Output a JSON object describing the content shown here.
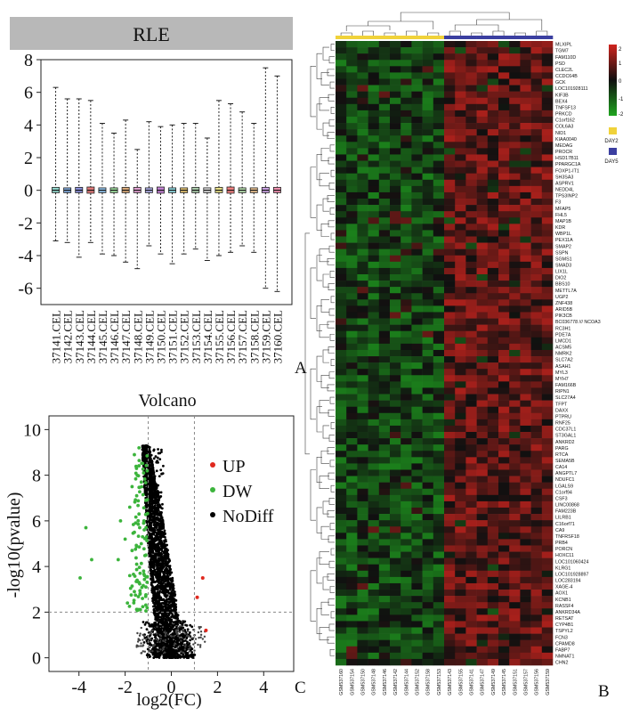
{
  "panel_labels": {
    "a": "A",
    "b": "B",
    "c": "C"
  },
  "colors": {
    "rle_header": "#b8b8b8",
    "heat_low": "#1fa51f",
    "heat_mid": "#101010",
    "heat_high": "#d0241e",
    "group_day2": "#f0d23a",
    "group_day5": "#3b3fa0",
    "up": "#e0281e",
    "dw": "#3cb43c",
    "nodiff": "#000000"
  },
  "chart_data": [
    {
      "type": "box",
      "title": "RLE",
      "ylim": [
        -7,
        8
      ],
      "yticks": [
        8,
        6,
        4,
        2,
        0,
        -2,
        -4,
        -6
      ],
      "categories": [
        "37141.CEL",
        "37142.CEL",
        "37143.CEL",
        "37144.CEL",
        "37145.CEL",
        "37146.CEL",
        "37147.CEL",
        "37148.CEL",
        "37149.CEL",
        "37150.CEL",
        "37151.CEL",
        "37152.CEL",
        "37153.CEL",
        "37154.CEL",
        "37155.CEL",
        "37156.CEL",
        "37157.CEL",
        "37158.CEL",
        "37159.CEL",
        "37160.CEL"
      ],
      "box_colors": [
        "#8fd3c8",
        "#7fa7d8",
        "#8a8fd8",
        "#e07a7a",
        "#8fc0e8",
        "#a0e0a0",
        "#d8a878",
        "#e0a0d0",
        "#b0b0e8",
        "#c080d0",
        "#90d8e0",
        "#e0c070",
        "#a8c8a8",
        "#d8d8d8",
        "#e8e088",
        "#f08080",
        "#b8e0b0",
        "#e8c090",
        "#c8a0e0",
        "#f090b0"
      ],
      "whisker_max": [
        6.3,
        5.6,
        5.6,
        5.5,
        4.1,
        3.5,
        4.3,
        2.5,
        4.2,
        3.9,
        4.0,
        4.1,
        4.1,
        3.2,
        5.5,
        5.3,
        4.8,
        4.1,
        7.5,
        7.0
      ],
      "whisker_min": [
        -3.1,
        -3.2,
        -4.1,
        -3.2,
        -3.9,
        -4.0,
        -4.4,
        -4.8,
        -3.4,
        -3.9,
        -4.5,
        -3.9,
        -3.6,
        -4.3,
        -4.0,
        -3.8,
        -3.4,
        -3.8,
        -6.0,
        -6.2
      ],
      "q1": [
        -0.15,
        -0.15,
        -0.15,
        -0.18,
        -0.15,
        -0.15,
        -0.15,
        -0.15,
        -0.15,
        -0.18,
        -0.15,
        -0.15,
        -0.15,
        -0.15,
        -0.15,
        -0.18,
        -0.15,
        -0.15,
        -0.15,
        -0.15
      ],
      "q3": [
        0.18,
        0.15,
        0.18,
        0.2,
        0.15,
        0.15,
        0.18,
        0.18,
        0.15,
        0.2,
        0.15,
        0.15,
        0.18,
        0.15,
        0.18,
        0.2,
        0.15,
        0.15,
        0.18,
        0.18
      ],
      "median": [
        0,
        0,
        0,
        0,
        0,
        0,
        0,
        0,
        0,
        0,
        0,
        0,
        0,
        0,
        0,
        0,
        0,
        0,
        0,
        0
      ]
    },
    {
      "type": "scatter",
      "title": "Volcano",
      "xlabel": "log2(FC)",
      "ylabel": "-log10(pvalue)",
      "xlim": [
        -5.3,
        5.3
      ],
      "ylim": [
        -0.6,
        10.6
      ],
      "xticks": [
        -4,
        -2,
        0,
        2,
        4
      ],
      "yticks": [
        0,
        2,
        4,
        6,
        8,
        10
      ],
      "thresholds": {
        "fc": [
          -1,
          1
        ],
        "p": 2
      },
      "legend": [
        "UP",
        "DW",
        "NoDiff"
      ],
      "series": [
        {
          "name": "UP",
          "points": [
            [
              1.36,
              3.5
            ],
            [
              1.12,
              2.65
            ],
            [
              1.5,
              1.2
            ]
          ]
        },
        {
          "name": "DW",
          "points": [
            [
              -3.7,
              5.7
            ],
            [
              -3.45,
              4.3
            ],
            [
              -3.95,
              3.5
            ],
            [
              -1.4,
              9.2
            ],
            [
              -1.6,
              8.9
            ],
            [
              -1.2,
              8.1
            ],
            [
              -1.3,
              7.7
            ],
            [
              -1.7,
              7.5
            ],
            [
              -1.5,
              7.1
            ],
            [
              -1.1,
              6.9
            ],
            [
              -1.8,
              6.6
            ],
            [
              -1.4,
              6.3
            ],
            [
              -2.2,
              6.0
            ],
            [
              -1.2,
              5.9
            ],
            [
              -1.6,
              5.5
            ],
            [
              -2.0,
              5.2
            ],
            [
              -1.3,
              5.0
            ],
            [
              -1.7,
              4.7
            ],
            [
              -1.1,
              4.5
            ],
            [
              -2.3,
              4.3
            ],
            [
              -1.5,
              4.1
            ],
            [
              -1.2,
              3.8
            ],
            [
              -1.8,
              3.6
            ],
            [
              -1.4,
              3.3
            ],
            [
              -1.1,
              3.1
            ],
            [
              -1.6,
              2.9
            ],
            [
              -1.25,
              2.6
            ],
            [
              -1.9,
              2.4
            ],
            [
              -1.05,
              2.2
            ],
            [
              -1.45,
              2.1
            ]
          ]
        }
      ],
      "nodiff_description_omitted": true
    },
    {
      "type": "heatmap",
      "legend": {
        "ticks": [
          "2",
          "1",
          "0",
          "-1",
          "-2"
        ],
        "groups": [
          "DAY2",
          "DAY5"
        ]
      },
      "columns": [
        "GSM537160",
        "GSM537154",
        "GSM537150",
        "GSM537148",
        "GSM537146",
        "GSM537142",
        "GSM537144",
        "GSM537152",
        "GSM537158",
        "GSM537153",
        "GSM537143",
        "GSM537155",
        "GSM537141",
        "GSM537147",
        "GSM537149",
        "GSM537145",
        "GSM537151",
        "GSM537157",
        "GSM537156",
        "GSM537159"
      ],
      "column_groups": [
        "DAY2",
        "DAY2",
        "DAY2",
        "DAY2",
        "DAY2",
        "DAY2",
        "DAY2",
        "DAY2",
        "DAY2",
        "DAY2",
        "DAY5",
        "DAY5",
        "DAY5",
        "DAY5",
        "DAY5",
        "DAY5",
        "DAY5",
        "DAY5",
        "DAY5",
        "DAY5"
      ],
      "rows": [
        "MLXIPL",
        "TGM7",
        "FAM110D",
        "PSD",
        "CLEC2L",
        "CCDC64B",
        "GCK",
        "LOC101928111",
        "KIF3B",
        "BEX4",
        "TNFSF13",
        "PRKCD",
        "C1orf162",
        "COL6A3",
        "NID1",
        "KIAA0040",
        "MEDAG",
        "PROCR",
        "HSD17B11",
        "PPARGC1A",
        "FOXP1-IT1",
        "SH3SA3",
        "ASPRV1",
        "NEDD4L",
        "TPS3INP2",
        "F3",
        "MFAP5",
        "FHL5",
        "MAP1B",
        "KDR",
        "WBP1L",
        "PEX11A",
        "SMAP2",
        "SSPN",
        "SGMS1",
        "SMAD3",
        "LIX1L",
        "DIO2",
        "BBS10",
        "METTL7A",
        "UGP2",
        "ZNF438",
        "ARID5B",
        "PIK3CB",
        "BC036778 /// NCOA3",
        "RC3H1",
        "PDE7A",
        "LMCD1",
        "ACSM5",
        "NMRK2",
        "SLC7A2",
        "ASAH1",
        "MYL3",
        "MYH7",
        "FAM166B",
        "RIPN1",
        "SLC27A4",
        "TFPT",
        "DAXX",
        "PTPRU",
        "RNF25",
        "CDC37L1",
        "ST3GAL1",
        "ANKRD2",
        "PARG",
        "RTCA",
        "SEMA5B",
        "CA14",
        "ANGPTL7",
        "NDUFC1",
        "LGALS9",
        "C1orf94",
        "CSF3",
        "LINC00868",
        "FAM223B",
        "LILRB1",
        "C16orf71",
        "CA9",
        "TNFRSF18",
        "PRB4",
        "PORCN",
        "HOXC11",
        "LOC101060424",
        "KLRG1",
        "LOC101928897",
        "LOC283194",
        "XAGE-4",
        "AOX1",
        "KCNB1",
        "RASSF4",
        "ANKRD34A",
        "RETSAT",
        "CYP4B1",
        "TSPYL2",
        "FCN3",
        "CPAMD8",
        "FABP7",
        "NMNAT1",
        "CHN2"
      ]
    }
  ]
}
